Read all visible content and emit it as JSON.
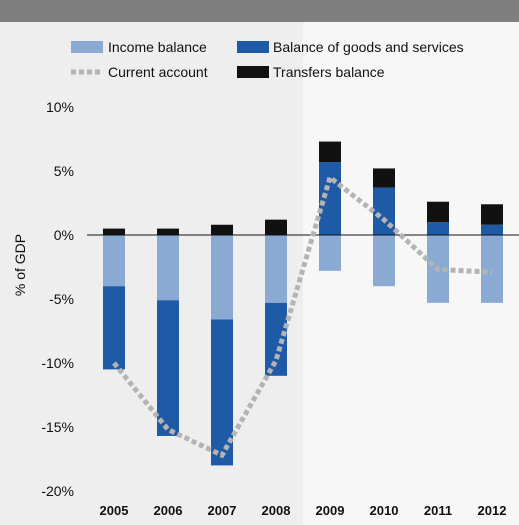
{
  "chart_data": {
    "type": "bar",
    "title": "",
    "xlabel": "",
    "ylabel": "% of GDP",
    "categories": [
      "2005",
      "2006",
      "2007",
      "2008",
      "2009",
      "2010",
      "2011",
      "2012"
    ],
    "ylim": [
      -20,
      10
    ],
    "yticks": [
      10,
      5,
      0,
      -5,
      -10,
      -15,
      -20
    ],
    "ytick_labels": [
      "10%",
      "5%",
      "0%",
      "-5%",
      "-10%",
      "-15%",
      "-20%"
    ],
    "stacked": true,
    "series": [
      {
        "name": "Income balance",
        "type": "bar",
        "color": "#8aaad3",
        "values": [
          -4.0,
          -5.1,
          -6.6,
          -5.3,
          -2.8,
          -4.0,
          -5.3,
          -5.3
        ]
      },
      {
        "name": "Balance of goods and services",
        "type": "bar",
        "color": "#1f5aa6",
        "values": [
          -6.5,
          -10.6,
          -11.4,
          -5.7,
          5.7,
          3.7,
          1.0,
          0.8
        ]
      },
      {
        "name": "Transfers balance",
        "type": "bar",
        "color": "#111111",
        "values": [
          0.5,
          0.5,
          0.8,
          1.2,
          1.6,
          1.5,
          1.6,
          1.6
        ]
      },
      {
        "name": "Current account",
        "type": "line",
        "style": "dotted",
        "color": "#b4b4b4",
        "values": [
          -10.0,
          -15.2,
          -17.2,
          -9.8,
          4.5,
          1.2,
          -2.7,
          -2.9
        ]
      }
    ],
    "legend": {
      "position": "top",
      "items": [
        "Income balance",
        "Balance of goods and services",
        "Current account",
        "Transfers balance"
      ]
    },
    "grid": false,
    "shaded_region_from": "2009"
  }
}
